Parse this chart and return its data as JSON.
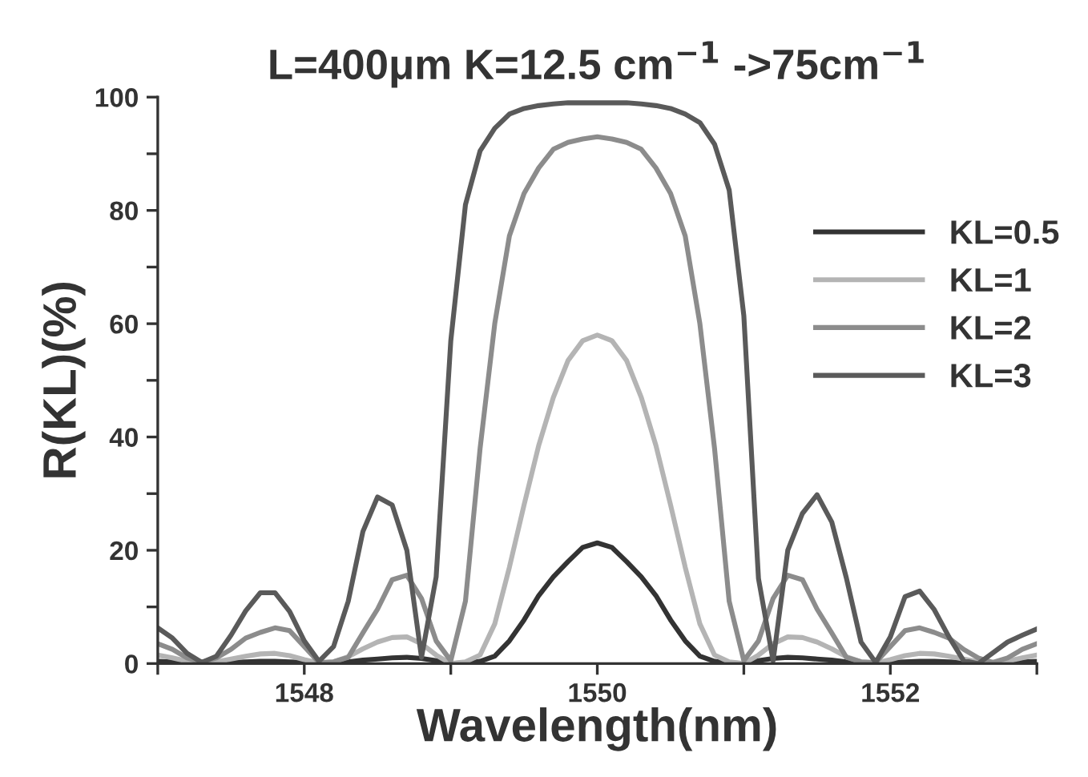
{
  "chart_data": {
    "type": "line",
    "title": "L=400μm Κ=12.5 cm$^{−1}$ ->75cm$^{−1}$",
    "xlabel": "Wavelength(nm)",
    "ylabel": "R(ΚL)(%)",
    "x": [
      1547.0,
      1547.1,
      1547.2,
      1547.3,
      1547.4,
      1547.5,
      1547.6,
      1547.7,
      1547.8,
      1547.9,
      1548.0,
      1548.1,
      1548.2,
      1548.3,
      1548.4,
      1548.5,
      1548.6,
      1548.7,
      1548.8,
      1548.9,
      1549.0,
      1549.1,
      1549.2,
      1549.3,
      1549.4,
      1549.5,
      1549.6,
      1549.7,
      1549.8,
      1549.9,
      1550.0,
      1550.1,
      1550.2,
      1550.3,
      1550.4,
      1550.5,
      1550.6,
      1550.7,
      1550.8,
      1550.9,
      1551.0,
      1551.1,
      1551.2,
      1551.3,
      1551.4,
      1551.5,
      1551.6,
      1551.7,
      1551.8,
      1551.9,
      1552.0,
      1552.1,
      1552.2,
      1552.3,
      1552.4,
      1552.5,
      1552.6,
      1552.7,
      1552.8,
      1552.9,
      1553.0
    ],
    "series": [
      {
        "name": "ΚL=0.5",
        "color": "#333333",
        "values": [
          0.4,
          0.3,
          0.1,
          0,
          0.1,
          0.2,
          0.3,
          0.4,
          0.4,
          0.3,
          0.2,
          0,
          0.1,
          0.3,
          0.6,
          0.8,
          1,
          1.1,
          0.9,
          0.5,
          0,
          0.1,
          0.4,
          1.3,
          4,
          7.7,
          12,
          15.3,
          18,
          20.5,
          21.3,
          20.5,
          18,
          15.3,
          12,
          7.7,
          4,
          1.3,
          0.4,
          0.1,
          0,
          0.5,
          0.9,
          1.1,
          1,
          0.8,
          0.6,
          0.3,
          0.1,
          0,
          0.2,
          0.3,
          0.4,
          0.4,
          0.3,
          0.2,
          0.1,
          0,
          0.1,
          0.3,
          0.4
        ]
      },
      {
        "name": "ΚL=1",
        "color": "#b4b4b4",
        "values": [
          1.5,
          1,
          0.4,
          0,
          0.3,
          0.8,
          1.3,
          1.7,
          1.8,
          1.4,
          0.7,
          0.1,
          0.3,
          1.2,
          2.6,
          3.8,
          4.6,
          4.7,
          3.5,
          1.5,
          0,
          0.3,
          1.5,
          7,
          17,
          28,
          38.5,
          47,
          53.5,
          57,
          58,
          57,
          53.5,
          47,
          38.5,
          28,
          17,
          7,
          1.5,
          0.3,
          0,
          1.5,
          3.5,
          4.7,
          4.6,
          3.8,
          2.6,
          1.2,
          0.3,
          0.1,
          0.7,
          1.4,
          1.8,
          1.7,
          1.3,
          0.8,
          0.3,
          0,
          0.4,
          1,
          1.5
        ]
      },
      {
        "name": "ΚL=2",
        "color": "#8c8c8c",
        "values": [
          3.5,
          2.5,
          1,
          0.2,
          1,
          2.5,
          4.5,
          5.5,
          6.3,
          5.8,
          3,
          0.2,
          0.3,
          1.1,
          5.4,
          9.6,
          14.8,
          15.6,
          11.5,
          4,
          0.5,
          11,
          38,
          60,
          75.5,
          83,
          87.5,
          90.8,
          92,
          92.6,
          93,
          92.6,
          92,
          90.8,
          87.5,
          83,
          75.5,
          60,
          38,
          11,
          0.5,
          4,
          11.5,
          15.6,
          14.8,
          9.6,
          5.4,
          1.1,
          0.3,
          0.2,
          3,
          5.8,
          6.3,
          5.5,
          4.5,
          2.5,
          1,
          0.2,
          1,
          2.5,
          3.5
        ]
      },
      {
        "name": "ΚL=3",
        "color": "#5a5a5a",
        "values": [
          6.3,
          4.5,
          1.8,
          0.2,
          1.3,
          5,
          9.3,
          12.5,
          12.5,
          9.2,
          4,
          0.4,
          3,
          11,
          23.3,
          29.4,
          28,
          20,
          1.1,
          15.3,
          57,
          81,
          90.5,
          94.5,
          97,
          98,
          98.5,
          98.8,
          99,
          99,
          99,
          99,
          99,
          98.8,
          98.5,
          98,
          97,
          95.5,
          91.7,
          83.6,
          61.4,
          15,
          0.5,
          20,
          26.5,
          29.8,
          25,
          15.1,
          3.8,
          0.2,
          4.7,
          11.8,
          12.8,
          9.5,
          4.7,
          0.5,
          0,
          1.9,
          3.8,
          5,
          6.1
        ]
      }
    ],
    "xlim": [
      1547,
      1553
    ],
    "xticks": [
      {
        "value": 1547,
        "label": null
      },
      1548,
      {
        "value": 1549,
        "label": null
      },
      1550,
      {
        "value": 1551,
        "label": null
      },
      1552,
      {
        "value": 1553,
        "label": null
      }
    ],
    "ylim": [
      0,
      100
    ],
    "yticks": [
      0,
      {
        "value": 10,
        "label": null
      },
      20,
      {
        "value": 30,
        "label": null
      },
      40,
      {
        "value": 50,
        "label": null
      },
      60,
      {
        "value": 70,
        "label": null
      },
      80,
      {
        "value": 90,
        "label": null
      },
      100
    ],
    "grid": false,
    "legend": "right",
    "marker": "none",
    "line_style": "solid"
  }
}
